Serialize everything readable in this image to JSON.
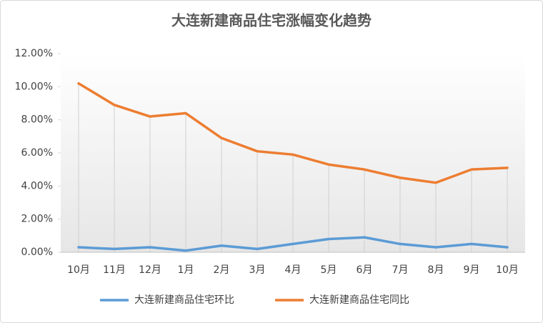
{
  "chart_data": {
    "type": "line",
    "title": "大连新建商品住宅涨幅变化趋势",
    "categories": [
      "10月",
      "11月",
      "12月",
      "1月",
      "2月",
      "3月",
      "4月",
      "5月",
      "6月",
      "7月",
      "8月",
      "9月",
      "10月"
    ],
    "series": [
      {
        "name": "大连新建商品住宅环比",
        "color": "#5b9bd5",
        "values": [
          0.3,
          0.2,
          0.3,
          0.1,
          0.4,
          0.2,
          0.5,
          0.8,
          0.9,
          0.5,
          0.3,
          0.5,
          0.3
        ]
      },
      {
        "name": "大连新建商品住宅同比",
        "color": "#ed7d31",
        "values": [
          10.2,
          8.9,
          8.2,
          8.4,
          6.9,
          6.1,
          5.9,
          5.3,
          5.0,
          4.5,
          4.2,
          5.0,
          5.1
        ]
      }
    ],
    "ylim": [
      0,
      12
    ],
    "yticks": [
      {
        "value": 0,
        "label": "0.00%"
      },
      {
        "value": 2,
        "label": "2.00%"
      },
      {
        "value": 4,
        "label": "4.00%"
      },
      {
        "value": 6,
        "label": "6.00%"
      },
      {
        "value": 8,
        "label": "8.00%"
      },
      {
        "value": 10,
        "label": "10.00%"
      },
      {
        "value": 12,
        "label": "12.00%"
      }
    ],
    "drop_lines": true,
    "legend": "bottom"
  }
}
